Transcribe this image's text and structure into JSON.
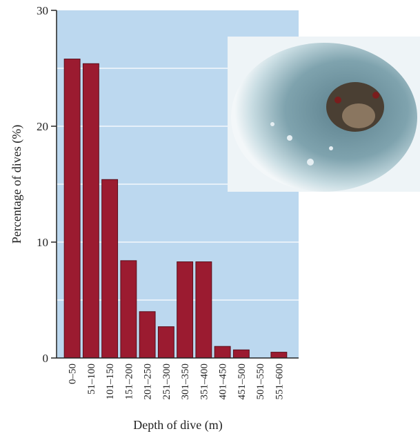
{
  "chart_data": {
    "type": "bar",
    "x_label": "Depth of dive (m)",
    "y_label": "Percentage of dives (%)",
    "categories": [
      "0–50",
      "51–100",
      "101–150",
      "151–200",
      "201–250",
      "251–300",
      "301–350",
      "351–400",
      "401–450",
      "451–500",
      "501–550",
      "551–600"
    ],
    "values": [
      25.8,
      25.4,
      15.4,
      8.4,
      4.0,
      2.7,
      8.3,
      8.3,
      1.0,
      0.7,
      0,
      0.5
    ],
    "color": "#9b1b30",
    "background": "#bcd8ef",
    "ylim": [
      0,
      30
    ],
    "yticks": [
      0,
      10,
      20,
      30
    ],
    "grid": true,
    "grid_minor": [
      5,
      15,
      25
    ]
  }
}
